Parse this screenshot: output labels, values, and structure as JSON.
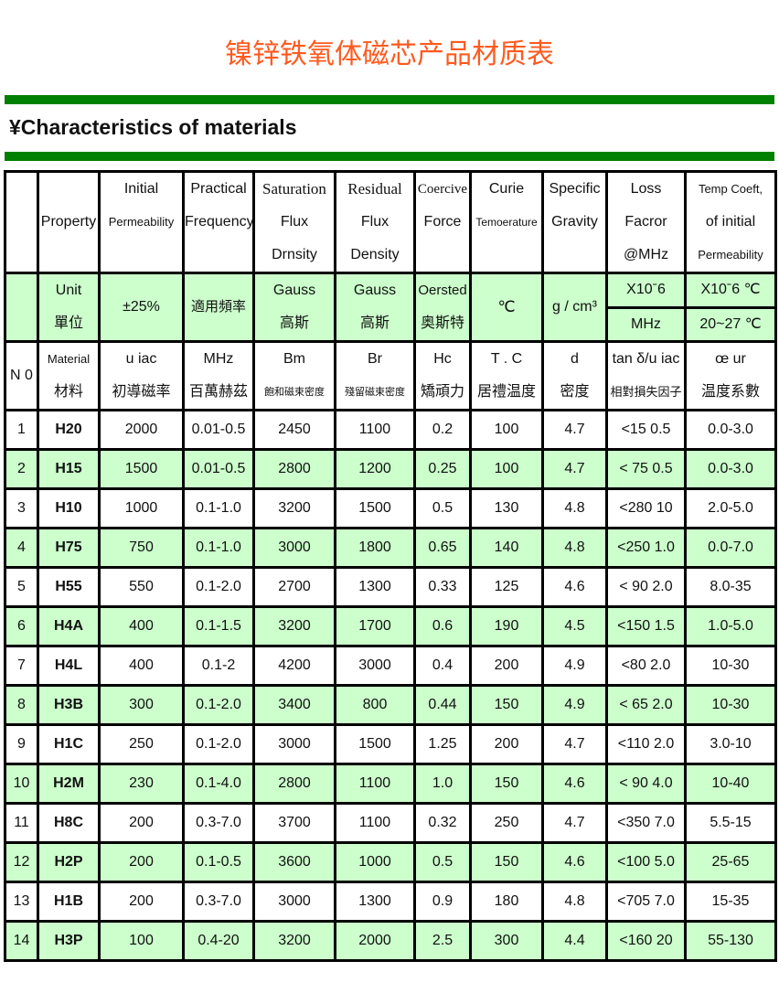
{
  "title": "镍锌铁氧体磁芯产品材质表",
  "subtitle": "¥Characteristics of materials",
  "colors": {
    "title": "#ff5a1f",
    "bar": "#008000",
    "row_green": "#ccffcc"
  },
  "header": {
    "property": "Property",
    "initial": [
      "Initial",
      "Permeability"
    ],
    "practical": [
      "Practical",
      "Frequency"
    ],
    "saturation": [
      "Saturation",
      "Flux",
      "Drnsity"
    ],
    "residual": [
      "Residual",
      "Flux",
      "Density"
    ],
    "coercive": [
      "Coercive",
      "Force"
    ],
    "curie": [
      "Curie",
      "Temoerature"
    ],
    "specific": [
      "Specific",
      "Gravity"
    ],
    "loss": [
      "Loss",
      "Facror",
      "@MHz"
    ],
    "temp": [
      "Temp Coeft,",
      "of initial",
      "Permeability"
    ]
  },
  "units": {
    "unit": [
      "Unit",
      "單位"
    ],
    "initial": "±25%",
    "practical": "適用頻率",
    "saturation": [
      "Gauss",
      "高斯"
    ],
    "residual": [
      "Gauss",
      "高斯"
    ],
    "coercive": [
      "Oersted",
      "奥斯特"
    ],
    "curie": "℃",
    "specific": "g / cm³",
    "loss_top": "X10ˉ6",
    "loss_bottom": "MHz",
    "temp_top": "X10ˉ6 ℃",
    "temp_bottom": "20~27 ℃"
  },
  "symbols": {
    "no": "N 0",
    "material": [
      "Material",
      "材料"
    ],
    "initial": [
      "u iac",
      "初導磁率"
    ],
    "practical": [
      "MHz",
      "百萬赫茲"
    ],
    "saturation": [
      "Bm",
      "飽和磁束密度"
    ],
    "residual": [
      "Br",
      "殘留磁束密度"
    ],
    "coercive": [
      "Hc",
      "矯頑力"
    ],
    "curie": [
      "T . C",
      "居禮温度"
    ],
    "specific": [
      "d",
      "密度"
    ],
    "loss": [
      "tan δ/u iac",
      "相對損失因子"
    ],
    "temp": [
      "œ ur",
      "温度系數"
    ]
  },
  "rows": [
    [
      "1",
      "H20",
      "2000",
      "0.01-0.5",
      "2450",
      "1100",
      "0.2",
      "100",
      "4.7",
      "<15 0.5",
      "0.0-3.0"
    ],
    [
      "2",
      "H15",
      "1500",
      "0.01-0.5",
      "2800",
      "1200",
      "0.25",
      "100",
      "4.7",
      "< 75 0.5",
      "0.0-3.0"
    ],
    [
      "3",
      "H10",
      "1000",
      "0.1-1.0",
      "3200",
      "1500",
      "0.5",
      "130",
      "4.8",
      "<280 10",
      "2.0-5.0"
    ],
    [
      "4",
      "H75",
      "750",
      "0.1-1.0",
      "3000",
      "1800",
      "0.65",
      "140",
      "4.8",
      "<250 1.0",
      "0.0-7.0"
    ],
    [
      "5",
      "H55",
      "550",
      "0.1-2.0",
      "2700",
      "1300",
      "0.33",
      "125",
      "4.6",
      "< 90 2.0",
      "8.0-35"
    ],
    [
      "6",
      "H4A",
      "400",
      "0.1-1.5",
      "3200",
      "1700",
      "0.6",
      "190",
      "4.5",
      "<150 1.5",
      "1.0-5.0"
    ],
    [
      "7",
      "H4L",
      "400",
      "0.1-2",
      "4200",
      "3000",
      "0.4",
      "200",
      "4.9",
      "<80  2.0",
      "10-30"
    ],
    [
      "8",
      "H3B",
      "300",
      "0.1-2.0",
      "3400",
      "800",
      "0.44",
      "150",
      "4.9",
      "< 65 2.0",
      "10-30"
    ],
    [
      "9",
      "H1C",
      "250",
      "0.1-2.0",
      "3000",
      "1500",
      "1.25",
      "200",
      "4.7",
      "<110 2.0",
      "3.0-10"
    ],
    [
      "10",
      "H2M",
      "230",
      "0.1-4.0",
      "2800",
      "1100",
      "1.0",
      "150",
      "4.6",
      "< 90 4.0",
      "10-40"
    ],
    [
      "11",
      "H8C",
      "200",
      "0.3-7.0",
      "3700",
      "1100",
      "0.32",
      "250",
      "4.7",
      "<350 7.0",
      "5.5-15"
    ],
    [
      "12",
      "H2P",
      "200",
      "0.1-0.5",
      "3600",
      "1000",
      "0.5",
      "150",
      "4.6",
      "<100 5.0",
      "25-65"
    ],
    [
      "13",
      "H1B",
      "200",
      "0.3-7.0",
      "3000",
      "1300",
      "0.9",
      "180",
      "4.8",
      "<705 7.0",
      "15-35"
    ],
    [
      "14",
      "H3P",
      "100",
      "0.4-20",
      "3200",
      "2000",
      "2.5",
      "300",
      "4.4",
      "<160 20",
      "55-130"
    ]
  ]
}
